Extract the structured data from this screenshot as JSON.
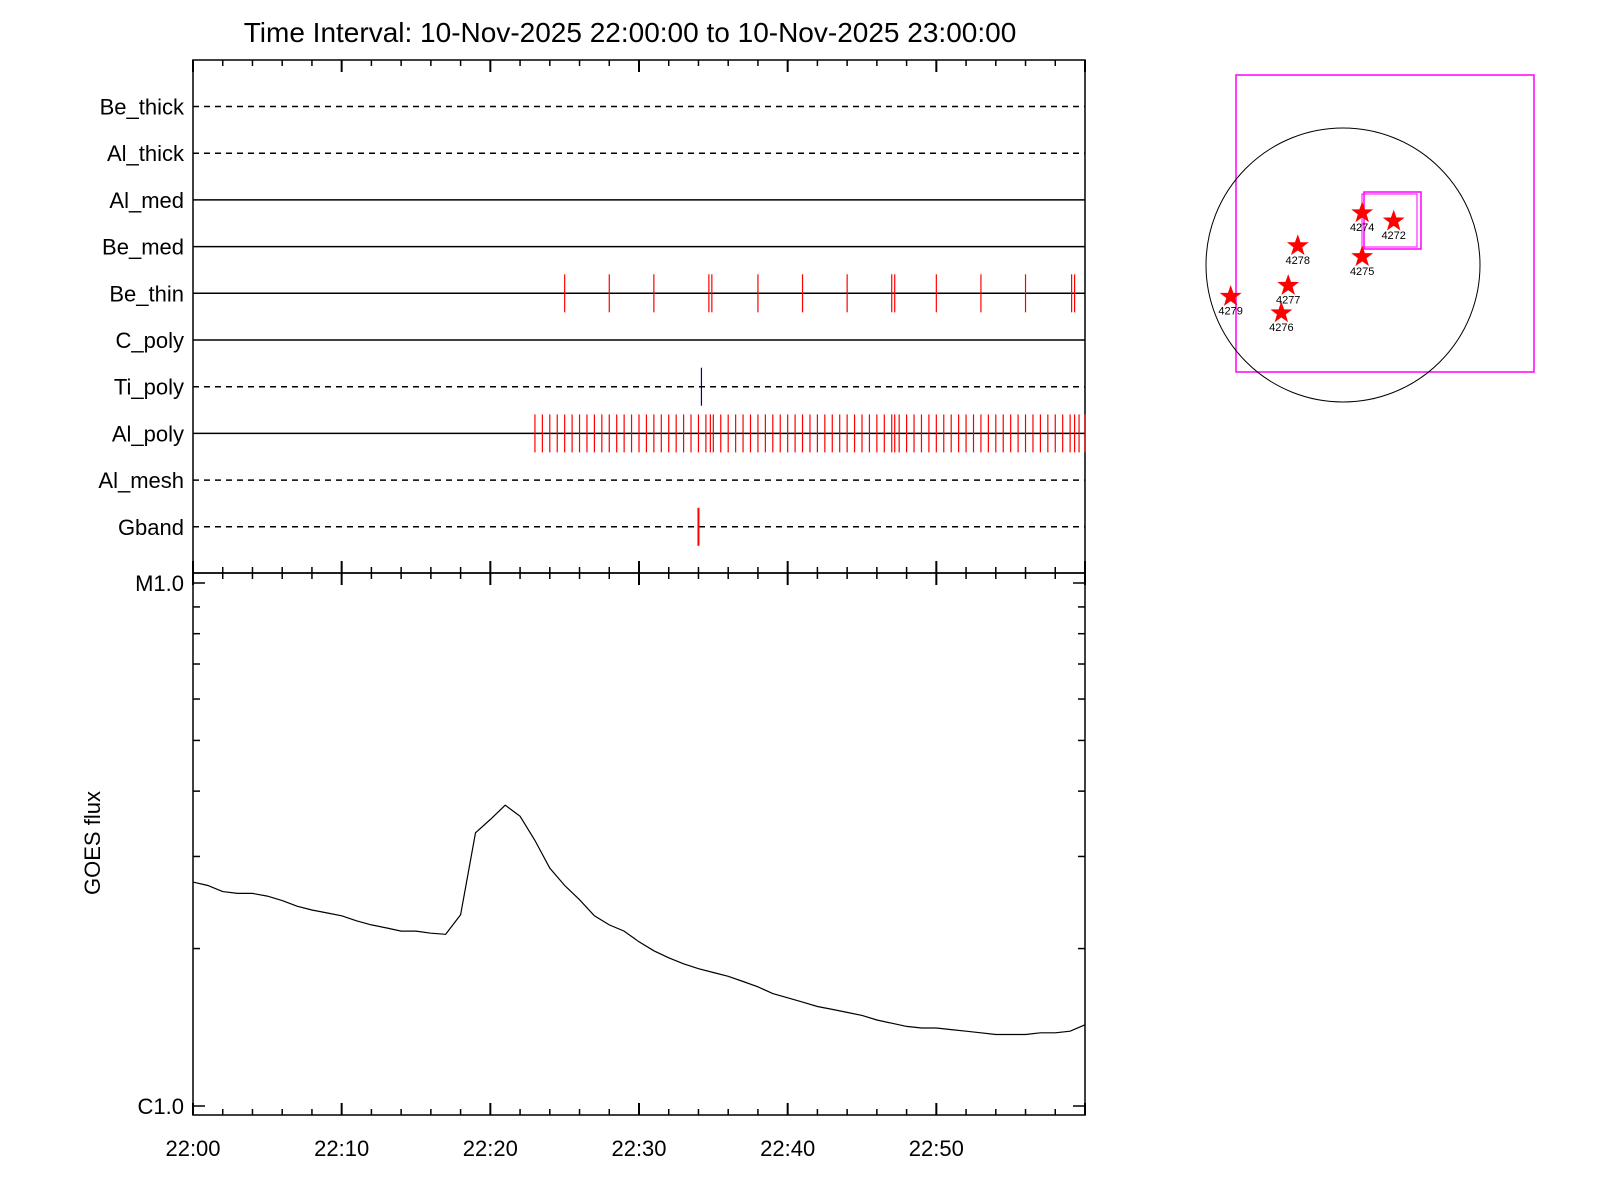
{
  "chart_data": [
    {
      "type": "timeline",
      "title": "Time Interval: 10-Nov-2025 22:00:00 to 10-Nov-2025 23:00:00",
      "x_range_minutes": [
        0,
        60
      ],
      "rows": [
        {
          "label": "Be_thick",
          "style": "dashed",
          "events": []
        },
        {
          "label": "Al_thick",
          "style": "dashed",
          "events": []
        },
        {
          "label": "Al_med",
          "style": "solid",
          "events": []
        },
        {
          "label": "Be_med",
          "style": "solid",
          "events": []
        },
        {
          "label": "Be_thin",
          "style": "solid",
          "events": [
            25.0,
            28.0,
            31.0,
            34.7,
            34.9,
            38.0,
            41.0,
            44.0,
            47.0,
            47.2,
            50.0,
            53.0,
            56.0,
            59.1,
            59.3
          ]
        },
        {
          "label": "C_poly",
          "style": "solid",
          "events": []
        },
        {
          "label": "Ti_poly",
          "style": "dashed",
          "events": [
            34.2
          ],
          "event_color": "#00008b"
        },
        {
          "label": "Al_poly",
          "style": "solid",
          "events": [
            23.0,
            23.5,
            24.0,
            24.5,
            25.0,
            25.5,
            26.0,
            26.5,
            27.0,
            27.5,
            28.0,
            28.5,
            29.0,
            29.5,
            30.0,
            30.5,
            31.0,
            31.5,
            32.0,
            32.5,
            33.0,
            33.5,
            34.0,
            34.5,
            34.8,
            35.0,
            35.5,
            36.0,
            36.5,
            37.0,
            37.5,
            38.0,
            38.5,
            39.0,
            39.5,
            40.0,
            40.5,
            41.0,
            41.5,
            42.0,
            42.5,
            43.0,
            43.5,
            44.0,
            44.5,
            45.0,
            45.5,
            46.0,
            46.5,
            47.0,
            47.2,
            47.5,
            48.0,
            48.5,
            49.0,
            49.5,
            50.0,
            50.5,
            51.0,
            51.5,
            52.0,
            52.5,
            53.0,
            53.5,
            54.0,
            54.5,
            55.0,
            55.5,
            56.0,
            56.5,
            57.0,
            57.5,
            58.0,
            58.5,
            59.0,
            59.3,
            59.6,
            60.0
          ]
        },
        {
          "label": "Al_mesh",
          "style": "dashed",
          "events": []
        },
        {
          "label": "Gband",
          "style": "dashed",
          "events": [
            34.0
          ],
          "event_tall": true
        }
      ],
      "event_color": "#ff0000"
    },
    {
      "type": "line",
      "ylabel": "GOES flux",
      "y_scale": "log",
      "ylim": [
        1e-06,
        1e-05
      ],
      "ytick_labels": [
        "C1.0",
        "M1.0"
      ],
      "xtick_labels": [
        "22:00",
        "22:10",
        "22:20",
        "22:30",
        "22:40",
        "22:50"
      ],
      "xtick_minutes": [
        0,
        10,
        20,
        30,
        40,
        50
      ],
      "x_minutes": [
        0,
        1,
        2,
        3,
        4,
        5,
        6,
        7,
        8,
        9,
        10,
        11,
        12,
        13,
        14,
        15,
        16,
        17,
        18,
        19,
        20,
        21,
        22,
        23,
        24,
        25,
        26,
        27,
        28,
        29,
        30,
        31,
        32,
        33,
        34,
        35,
        36,
        37,
        38,
        39,
        40,
        41,
        42,
        43,
        44,
        45,
        46,
        47,
        48,
        49,
        50,
        51,
        52,
        53,
        54,
        55,
        56,
        57,
        58,
        59,
        60
      ],
      "y_values": [
        2.68e-06,
        2.64e-06,
        2.57e-06,
        2.55e-06,
        2.55e-06,
        2.52e-06,
        2.47e-06,
        2.41e-06,
        2.37e-06,
        2.34e-06,
        2.31e-06,
        2.26e-06,
        2.22e-06,
        2.19e-06,
        2.16e-06,
        2.16e-06,
        2.14e-06,
        2.13e-06,
        2.32e-06,
        3.33e-06,
        3.53e-06,
        3.76e-06,
        3.58e-06,
        3.22e-06,
        2.85e-06,
        2.64e-06,
        2.48e-06,
        2.31e-06,
        2.22e-06,
        2.16e-06,
        2.06e-06,
        1.98e-06,
        1.92e-06,
        1.87e-06,
        1.83e-06,
        1.8e-06,
        1.77e-06,
        1.73e-06,
        1.69e-06,
        1.64e-06,
        1.61e-06,
        1.58e-06,
        1.55e-06,
        1.53e-06,
        1.51e-06,
        1.49e-06,
        1.46e-06,
        1.44e-06,
        1.42e-06,
        1.41e-06,
        1.41e-06,
        1.4e-06,
        1.39e-06,
        1.38e-06,
        1.37e-06,
        1.37e-06,
        1.37e-06,
        1.38e-06,
        1.38e-06,
        1.39e-06,
        1.43e-06
      ]
    },
    {
      "type": "scatter",
      "subtype": "solar-disk-map",
      "points": [
        {
          "label": "4272",
          "x": 0.37,
          "y": 0.32
        },
        {
          "label": "4274",
          "x": 0.14,
          "y": 0.38
        },
        {
          "label": "4275",
          "x": 0.14,
          "y": 0.06
        },
        {
          "label": "4278",
          "x": -0.33,
          "y": 0.14
        },
        {
          "label": "4277",
          "x": -0.4,
          "y": -0.15
        },
        {
          "label": "4276",
          "x": -0.45,
          "y": -0.35
        },
        {
          "label": "4279",
          "x": -0.82,
          "y": -0.23
        }
      ]
    }
  ]
}
